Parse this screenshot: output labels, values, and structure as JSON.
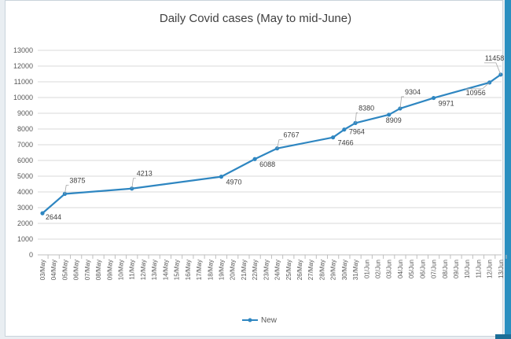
{
  "chart_data": {
    "type": "line",
    "title": "Daily Covid cases (May to mid-June)",
    "xlabel": "",
    "ylabel": "",
    "ylim": [
      0,
      13000
    ],
    "yticks": [
      0,
      1000,
      2000,
      3000,
      4000,
      5000,
      6000,
      7000,
      8000,
      9000,
      10000,
      11000,
      12000,
      13000
    ],
    "grid": true,
    "legend": "bottom",
    "categories": [
      "03/May",
      "04/May",
      "05/May",
      "06/May",
      "07/May",
      "08/May",
      "09/May",
      "10/May",
      "11/May",
      "12/May",
      "13/May",
      "14/May",
      "15/May",
      "16/May",
      "17/May",
      "18/May",
      "19/May",
      "20/May",
      "21/May",
      "22/May",
      "23/May",
      "24/May",
      "25/May",
      "26/May",
      "27/May",
      "28/May",
      "29/May",
      "30/May",
      "31/May",
      "01/Jun",
      "02/Jun",
      "03/Jun",
      "04/Jun",
      "05/Jun",
      "06/Jun",
      "07/Jun",
      "08/Jun",
      "09/Jun",
      "10/Jun",
      "11/Jun",
      "12/Jun",
      "13/Jun"
    ],
    "series": [
      {
        "name": "New",
        "color": "#2e86c1",
        "points": [
          {
            "x": "03/May",
            "y": 2644,
            "label": "2644"
          },
          {
            "x": "05/May",
            "y": 3875,
            "label": "3875"
          },
          {
            "x": "11/May",
            "y": 4213,
            "label": "4213"
          },
          {
            "x": "19/May",
            "y": 4970,
            "label": "4970"
          },
          {
            "x": "22/May",
            "y": 6088,
            "label": "6088"
          },
          {
            "x": "24/May",
            "y": 6767,
            "label": "6767"
          },
          {
            "x": "29/May",
            "y": 7466,
            "label": "7466"
          },
          {
            "x": "30/May",
            "y": 7964,
            "label": "7964"
          },
          {
            "x": "31/May",
            "y": 8380,
            "label": "8380"
          },
          {
            "x": "03/Jun",
            "y": 8909,
            "label": "8909"
          },
          {
            "x": "04/Jun",
            "y": 9304,
            "label": "9304"
          },
          {
            "x": "07/Jun",
            "y": 9971,
            "label": "9971"
          },
          {
            "x": "12/Jun",
            "y": 10956,
            "label": "10956"
          },
          {
            "x": "13/Jun",
            "y": 11458,
            "label": "11458"
          }
        ]
      }
    ]
  }
}
